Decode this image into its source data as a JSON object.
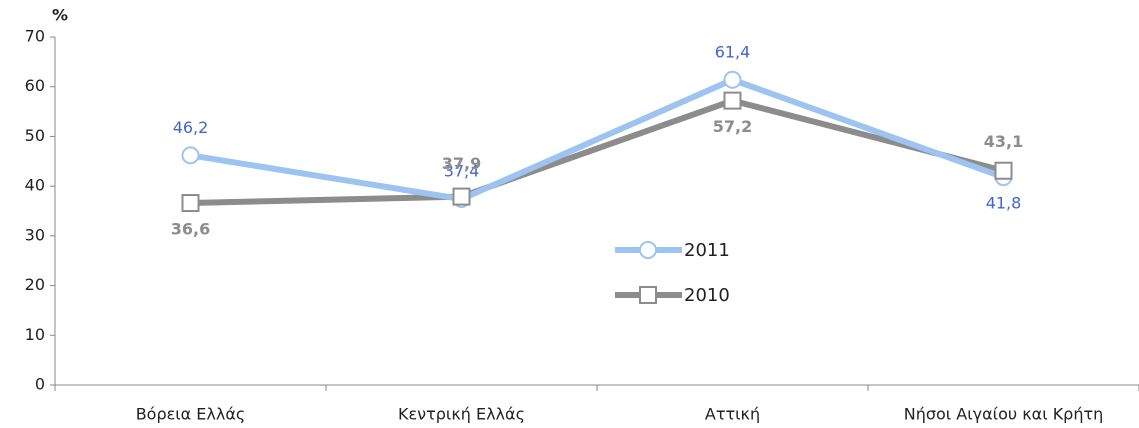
{
  "chart_data": {
    "type": "line",
    "y_label": "%",
    "categories": [
      "Βόρεια Ελλάς",
      "Κεντρική Ελλάς",
      "Αττική",
      "Νήσοι Αιγαίου και Κρήτη"
    ],
    "series": [
      {
        "name": "2011",
        "color": "#9dc3f0",
        "label_color": "#3f66d4",
        "marker": "circle",
        "values": [
          46.2,
          37.4,
          61.4,
          41.8
        ],
        "value_labels": [
          "46,2",
          "37,4",
          "61,4",
          "41,8"
        ]
      },
      {
        "name": "2010",
        "color": "#8c8c8c",
        "label_color": "#8c8c8c",
        "marker": "square",
        "values": [
          36.6,
          37.9,
          57.2,
          43.1
        ],
        "value_labels": [
          "36,6",
          "37,9",
          "57,2",
          "43,1"
        ]
      }
    ],
    "ylim": [
      0,
      70
    ],
    "yticks": [
      0,
      10,
      20,
      30,
      40,
      50,
      60,
      70
    ],
    "grid": false
  }
}
